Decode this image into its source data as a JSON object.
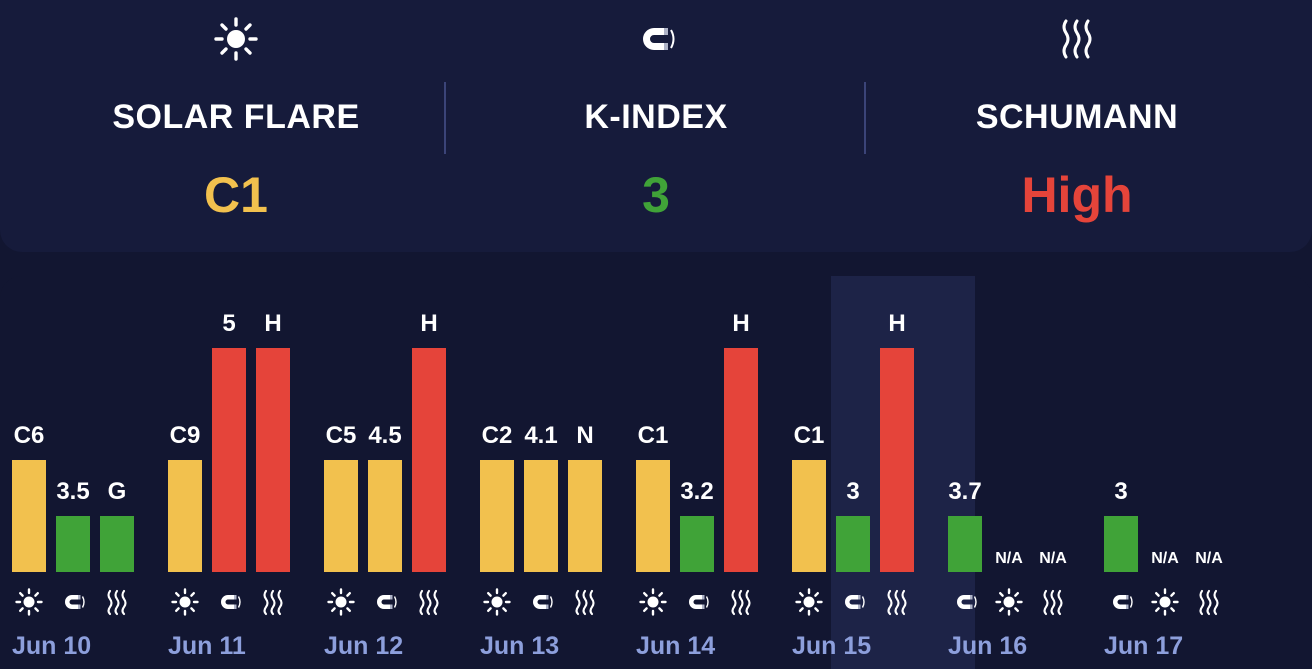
{
  "summary": [
    {
      "title": "SOLAR FLARE",
      "value": "C1",
      "color": "#f2c14e",
      "icon": "sun-icon"
    },
    {
      "title": "K-INDEX",
      "value": "3",
      "color": "#40a338",
      "icon": "magnet-icon"
    },
    {
      "title": "SCHUMANN",
      "value": "High",
      "color": "#e5443a",
      "icon": "waves-icon"
    }
  ],
  "colors": {
    "yellow": "#f2c14e",
    "green": "#40a338",
    "red": "#e5443a",
    "highlight": "#1d2347"
  },
  "chart_data": {
    "type": "bar",
    "selected": "Jun 15",
    "days": [
      {
        "date": "",
        "bars": [
          {
            "kind": "schumann",
            "label": "G",
            "level": "low"
          }
        ]
      },
      {
        "date": "Jun 10",
        "bars": [
          {
            "kind": "solar",
            "label": "C6",
            "level": "medium"
          },
          {
            "kind": "kindex",
            "label": "3.5",
            "level": "low"
          },
          {
            "kind": "schumann",
            "label": "G",
            "level": "low"
          }
        ]
      },
      {
        "date": "Jun 11",
        "bars": [
          {
            "kind": "solar",
            "label": "C9",
            "level": "medium"
          },
          {
            "kind": "kindex",
            "label": "5",
            "level": "high"
          },
          {
            "kind": "schumann",
            "label": "H",
            "level": "high"
          }
        ]
      },
      {
        "date": "Jun 12",
        "bars": [
          {
            "kind": "solar",
            "label": "C5",
            "level": "medium"
          },
          {
            "kind": "kindex",
            "label": "4.5",
            "level": "medium"
          },
          {
            "kind": "schumann",
            "label": "H",
            "level": "high"
          }
        ]
      },
      {
        "date": "Jun 13",
        "bars": [
          {
            "kind": "solar",
            "label": "C2",
            "level": "medium"
          },
          {
            "kind": "kindex",
            "label": "4.1",
            "level": "medium"
          },
          {
            "kind": "schumann",
            "label": "N",
            "level": "medium"
          }
        ]
      },
      {
        "date": "Jun 14",
        "bars": [
          {
            "kind": "solar",
            "label": "C1",
            "level": "medium"
          },
          {
            "kind": "kindex",
            "label": "3.2",
            "level": "low"
          },
          {
            "kind": "schumann",
            "label": "H",
            "level": "high"
          }
        ]
      },
      {
        "date": "Jun 15",
        "bars": [
          {
            "kind": "solar",
            "label": "C1",
            "level": "medium"
          },
          {
            "kind": "kindex",
            "label": "3",
            "level": "low"
          },
          {
            "kind": "schumann",
            "label": "H",
            "level": "high"
          }
        ]
      },
      {
        "date": "Jun 16",
        "bars": [
          {
            "kind": "kindex",
            "label": "3.7",
            "level": "low"
          },
          {
            "kind": "solar",
            "label": "N/A",
            "level": "none"
          },
          {
            "kind": "schumann",
            "label": "N/A",
            "level": "none"
          }
        ]
      },
      {
        "date": "Jun 17",
        "bars": [
          {
            "kind": "kindex",
            "label": "3",
            "level": "low"
          },
          {
            "kind": "solar",
            "label": "N/A",
            "level": "none"
          },
          {
            "kind": "schumann",
            "label": "N/A",
            "level": "none"
          }
        ]
      }
    ]
  }
}
